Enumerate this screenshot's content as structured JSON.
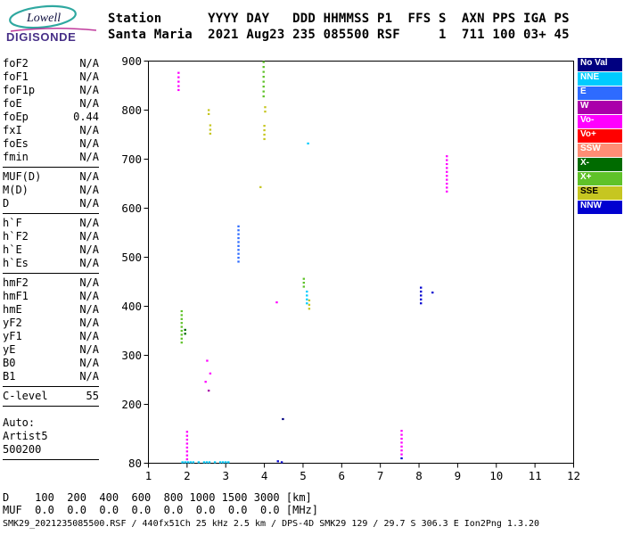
{
  "logo": {
    "line1": "Lowell",
    "line2": "DIGISONDE"
  },
  "header": {
    "line1": "Station      YYYY DAY   DDD HHMMSS P1  FFS S  AXN PPS IGA PS",
    "line2": "Santa Maria  2021 Aug23 235 085500 RSF     1  711 100 03+ 45"
  },
  "params": {
    "groups": [
      {
        "rows": [
          [
            "foF2",
            "N/A"
          ],
          [
            "foF1",
            "N/A"
          ],
          [
            "foF1p",
            "N/A"
          ],
          [
            "foE",
            "N/A"
          ],
          [
            "foEp",
            "0.44"
          ],
          [
            "fxI",
            "N/A"
          ],
          [
            "foEs",
            "N/A"
          ],
          [
            "fmin",
            "N/A"
          ]
        ]
      },
      {
        "rows": [
          [
            "MUF(D)",
            "N/A"
          ],
          [
            "M(D)",
            "N/A"
          ],
          [
            "D",
            "N/A"
          ]
        ]
      },
      {
        "rows": [
          [
            "h`F",
            "N/A"
          ],
          [
            "h`F2",
            "N/A"
          ],
          [
            "h`E",
            "N/A"
          ],
          [
            "h`Es",
            "N/A"
          ]
        ]
      },
      {
        "rows": [
          [
            "hmF2",
            "N/A"
          ],
          [
            "hmF1",
            "N/A"
          ],
          [
            "hmE",
            "N/A"
          ],
          [
            "yF2",
            "N/A"
          ],
          [
            "yF1",
            "N/A"
          ],
          [
            "yE",
            "N/A"
          ],
          [
            "B0",
            "N/A"
          ],
          [
            "B1",
            "N/A"
          ]
        ]
      },
      {
        "rows": [
          [
            "C-level",
            "55"
          ]
        ]
      },
      {
        "rows": [
          [
            "Auto:",
            ""
          ],
          [
            "Artist5",
            ""
          ],
          [
            "500200",
            ""
          ]
        ]
      }
    ]
  },
  "footer": {
    "d_line": "D    100  200  400  600  800 1000 1500 3000 [km]",
    "muf_line": "MUF  0.0  0.0  0.0  0.0  0.0  0.0  0.0  0.0 [MHz]",
    "file_line": "SMK29_2021235085500.RSF / 440fx51Ch 25 kHz 2.5 km / DPS-4D SMK29 129 / 29.7 S 306.3 E Ion2Png 1.3.20"
  },
  "chart_data": {
    "type": "scatter",
    "title": "",
    "x_axis": {
      "unit": "MHz",
      "min": 1,
      "max": 12,
      "ticks": [
        1,
        2,
        3,
        4,
        5,
        6,
        7,
        8,
        9,
        10,
        11,
        12
      ]
    },
    "y_axis": {
      "unit": "km",
      "min": 80,
      "max": 900,
      "ticks": [
        80,
        200,
        300,
        400,
        500,
        600,
        700,
        800,
        900
      ]
    },
    "grid": false,
    "legend_position": "right",
    "colors": {
      "NoVal": "#000080",
      "NNE": "#00ccff",
      "E": "#2e6bff",
      "W": "#aa00aa",
      "Vo-": "#ff00ff",
      "Vo+": "#ff0000",
      "SSW": "#ff8d75",
      "X-": "#006b00",
      "X+": "#5fc229",
      "SSE": "#c6c621",
      "NNW": "#0000d0"
    },
    "legend": [
      {
        "label": "No Val",
        "cat": "NoVal",
        "bg": "#000080",
        "fg": "#ffffff"
      },
      {
        "label": "NNE",
        "cat": "NNE",
        "bg": "#00ccff",
        "fg": "#ffffff"
      },
      {
        "label": "E",
        "cat": "E",
        "bg": "#2e6bff",
        "fg": "#ffffff"
      },
      {
        "label": "W",
        "cat": "W",
        "bg": "#aa00aa",
        "fg": "#ffffff"
      },
      {
        "label": "Vo-",
        "cat": "Vo-",
        "bg": "#ff00ff",
        "fg": "#ffffff"
      },
      {
        "label": "Vo+",
        "cat": "Vo+",
        "bg": "#ff0000",
        "fg": "#ffffff"
      },
      {
        "label": "SSW",
        "cat": "SSW",
        "bg": "#ff8d75",
        "fg": "#ffffff"
      },
      {
        "label": "X-",
        "cat": "X-",
        "bg": "#006b00",
        "fg": "#ffffff"
      },
      {
        "label": "X+",
        "cat": "X+",
        "bg": "#5fc229",
        "fg": "#ffffff"
      },
      {
        "label": "SSE",
        "cat": "SSE",
        "bg": "#c6c621",
        "fg": "#000000"
      },
      {
        "label": "NNW",
        "cat": "NNW",
        "bg": "#0000d0",
        "fg": "#ffffff"
      }
    ],
    "groups": [
      {
        "cat": "Vo-",
        "x": 1.78,
        "h": [
          876,
          867,
          858,
          849,
          841
        ]
      },
      {
        "cat": "SSE",
        "x": 2.56,
        "h": [
          800,
          792
        ]
      },
      {
        "cat": "SSE",
        "x": 2.6,
        "h": [
          769,
          760,
          752
        ]
      },
      {
        "cat": "X+",
        "x": 3.98,
        "h": [
          898,
          888,
          878,
          868,
          858,
          848,
          838,
          828
        ]
      },
      {
        "cat": "SSE",
        "x": 4.02,
        "h": [
          806,
          797
        ]
      },
      {
        "cat": "SSE",
        "x": 4.0,
        "h": [
          768,
          759,
          750,
          741
        ]
      },
      {
        "cat": "NNE",
        "x": 5.13,
        "h": [
          732
        ]
      },
      {
        "cat": "SSE",
        "x": 3.9,
        "h": [
          643
        ]
      },
      {
        "cat": "Vo-",
        "x": 8.72,
        "h": [
          706,
          698,
          690,
          682,
          674,
          666,
          658,
          650,
          642,
          634
        ]
      },
      {
        "cat": "E",
        "x": 3.33,
        "h": [
          563,
          555,
          547,
          539,
          531,
          523,
          515,
          507,
          499,
          491
        ]
      },
      {
        "cat": "X+",
        "x": 5.02,
        "h": [
          456,
          448,
          440
        ]
      },
      {
        "cat": "NNE",
        "x": 5.1,
        "h": [
          430,
          422,
          414,
          406
        ]
      },
      {
        "cat": "SSE",
        "x": 5.16,
        "h": [
          412,
          403,
          395
        ]
      },
      {
        "cat": "Vo-",
        "x": 4.32,
        "h": [
          408
        ]
      },
      {
        "cat": "NNW",
        "x": 8.05,
        "h": [
          438,
          430,
          422,
          414,
          406
        ]
      },
      {
        "cat": "NNW",
        "x": 8.35,
        "h": [
          428
        ]
      },
      {
        "cat": "X+",
        "x": 1.86,
        "h": [
          390,
          382,
          374,
          366,
          358,
          350,
          342,
          334,
          326
        ]
      },
      {
        "cat": "X-",
        "x": 1.95,
        "h": [
          352,
          344
        ]
      },
      {
        "cat": "Vo-",
        "x": 2.52,
        "h": [
          289
        ]
      },
      {
        "cat": "Vo-",
        "x": 2.6,
        "h": [
          263
        ]
      },
      {
        "cat": "Vo-",
        "x": 2.48,
        "h": [
          246
        ]
      },
      {
        "cat": "W",
        "x": 2.56,
        "h": [
          228
        ]
      },
      {
        "cat": "NoVal",
        "x": 4.48,
        "h": [
          170
        ]
      },
      {
        "cat": "Vo-",
        "x": 7.55,
        "h": [
          146,
          138,
          130,
          122,
          114,
          106,
          98
        ]
      },
      {
        "cat": "NNW",
        "x": 7.55,
        "h": [
          90
        ]
      },
      {
        "cat": "Vo-",
        "x": 2.0,
        "h": [
          144,
          136,
          128,
          120,
          112,
          104,
          96,
          88
        ]
      },
      {
        "cat": "NNE",
        "h": 82,
        "xs": [
          1.88,
          1.95,
          2.02,
          2.09,
          2.16,
          2.3,
          2.44,
          2.51,
          2.58,
          2.72,
          2.86,
          2.93,
          3.0,
          3.07
        ]
      },
      {
        "cat": "NNW",
        "x": 4.35,
        "h": [
          84
        ]
      },
      {
        "cat": "NNW",
        "x": 4.45,
        "h": [
          82
        ]
      }
    ]
  }
}
